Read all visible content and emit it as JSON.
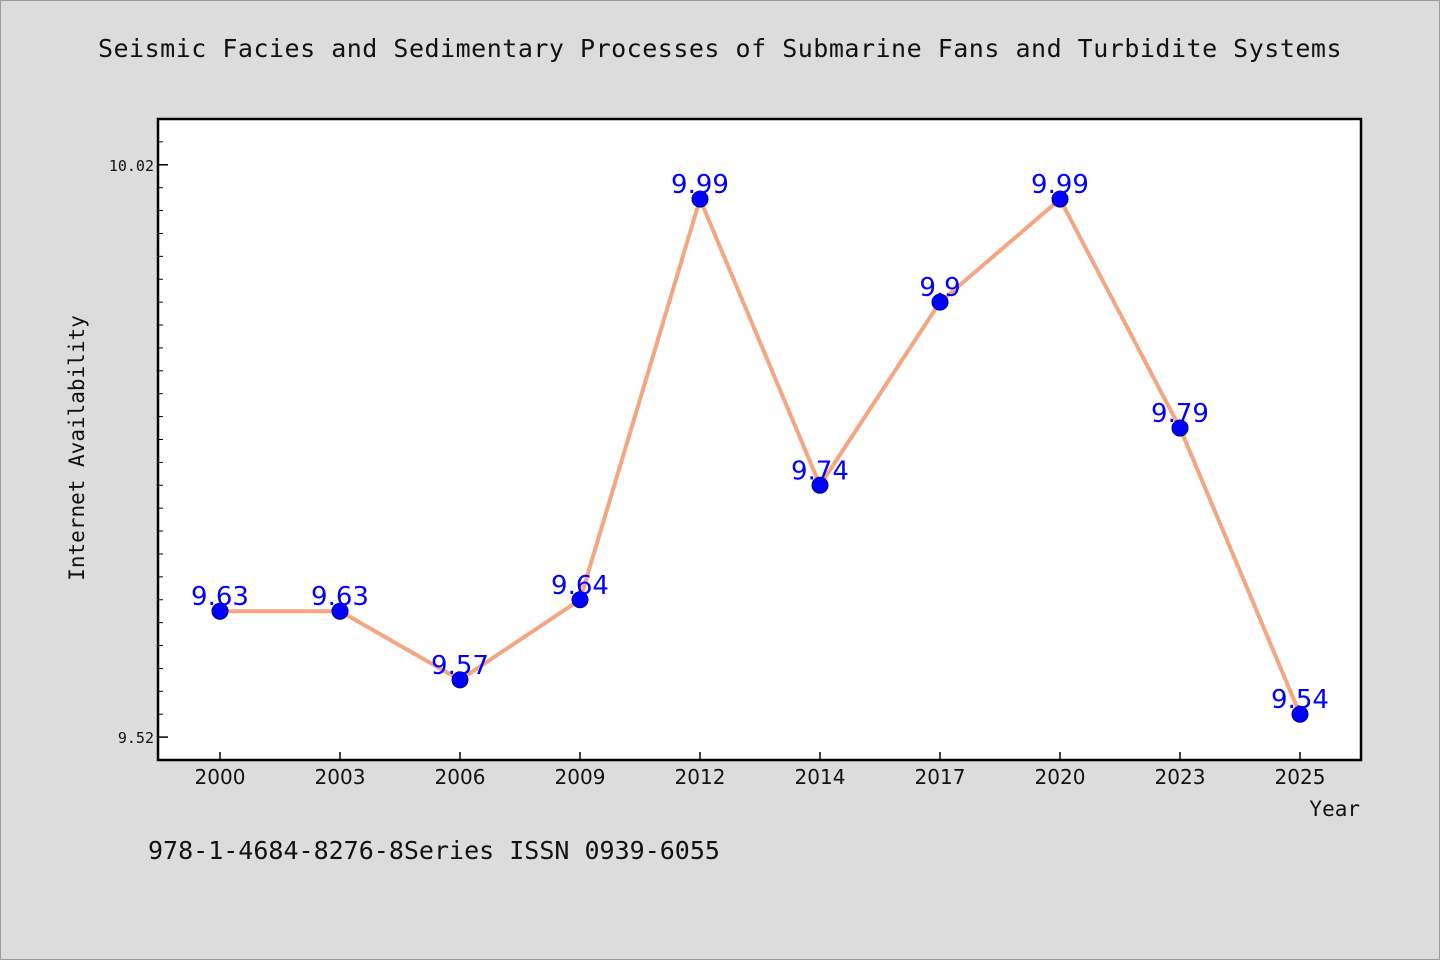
{
  "title": "Seismic Facies and Sedimentary Processes of Submarine Fans and Turbidite Systems",
  "footer_text": "978-1-4684-8276-8Series ISSN 0939-6055",
  "chart_data": {
    "type": "line",
    "title": "Seismic Facies and Sedimentary Processes of Submarine Fans and Turbidite Systems",
    "xlabel": "Year",
    "ylabel": "Internet Availability",
    "categories": [
      "2000",
      "2003",
      "2006",
      "2009",
      "2012",
      "2014",
      "2017",
      "2020",
      "2023",
      "2025"
    ],
    "series": [
      {
        "values": [
          9.63,
          9.63,
          9.57,
          9.64,
          9.99,
          9.74,
          9.9,
          9.99,
          9.79,
          9.54
        ],
        "labels": [
          "9.63",
          "9.63",
          "9.57",
          "9.64",
          "9.99",
          "9.74",
          "9.9",
          "9.99",
          "9.79",
          "9.54"
        ]
      }
    ],
    "y_tick_labels": [
      "10.02",
      "9.52"
    ],
    "y_ticks": [
      10.02,
      9.52
    ],
    "ylim": [
      9.5,
      10.06
    ],
    "grid": false,
    "colors": {
      "line": "#f4a582",
      "marker": "#0000ff",
      "marker_edge": "#00008b",
      "data_label": "#0000ff",
      "plot_background": "#ffffff",
      "page_background": "#dcdcdc"
    }
  }
}
